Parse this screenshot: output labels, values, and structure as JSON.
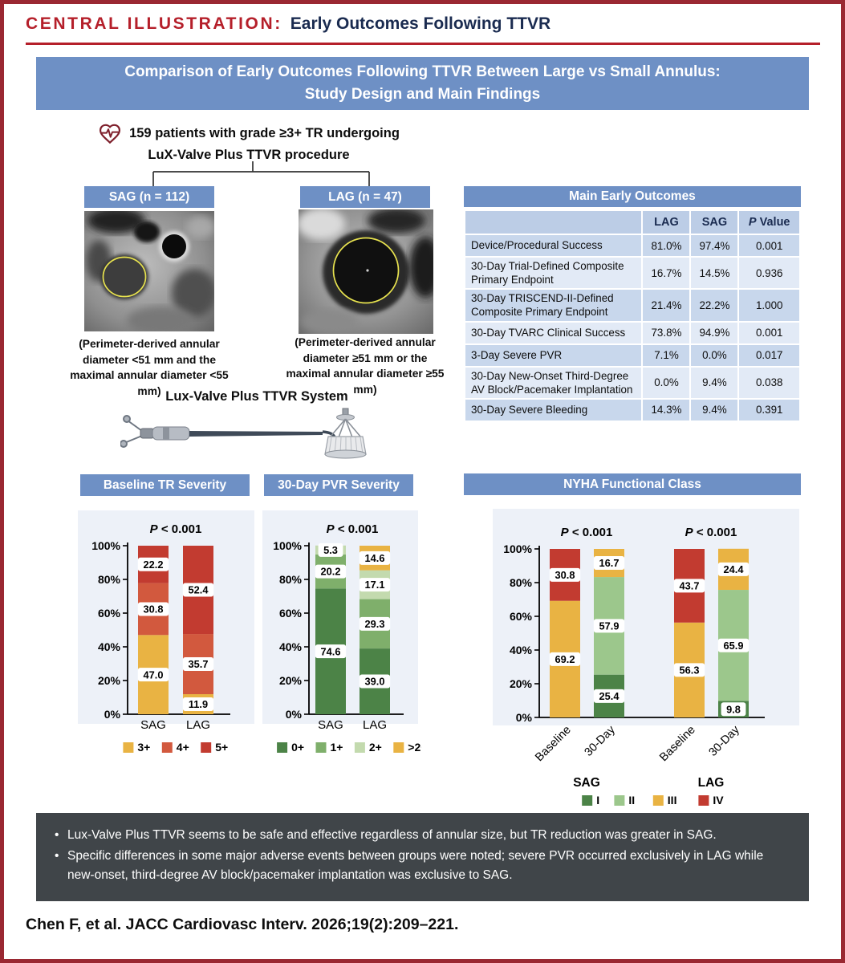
{
  "page": {
    "header_label": "CENTRAL ILLUSTRATION:",
    "header_title": "Early Outcomes Following TTVR",
    "banner_line1": "Comparison of Early Outcomes Following TTVR Between Large vs Small Annulus:",
    "banner_line2": "Study Design and Main Findings",
    "citation": "Chen F, et al. JACC Cardiovasc Interv. 2026;19(2):209–221."
  },
  "study": {
    "population_line1": "159 patients with grade ≥3+ TR undergoing",
    "population_line2": "LuX-Valve Plus TTVR procedure",
    "sag_label": "SAG (n = 112)",
    "lag_label": "LAG (n = 47)",
    "sag_caption": "(Perimeter-derived annular diameter <51 mm and the maximal annular diameter <55 mm)",
    "lag_caption": "(Perimeter-derived annular diameter ≥51 mm or the maximal annular diameter ≥55 mm)",
    "device_title": "Lux-Valve Plus TTVR System"
  },
  "outcomes_table": {
    "title": "Main Early Outcomes",
    "columns": [
      "",
      "LAG",
      "SAG",
      "P Value"
    ],
    "rows": [
      {
        "label": "Device/Procedural Success",
        "lag": "81.0%",
        "sag": "97.4%",
        "p": "0.001"
      },
      {
        "label": "30-Day Trial-Defined Composite Primary Endpoint",
        "lag": "16.7%",
        "sag": "14.5%",
        "p": "0.936"
      },
      {
        "label": "30-Day TRISCEND-II-Defined Composite Primary Endpoint",
        "lag": "21.4%",
        "sag": "22.2%",
        "p": "1.000"
      },
      {
        "label": "30-Day TVARC Clinical Success",
        "lag": "73.8%",
        "sag": "94.9%",
        "p": "0.001"
      },
      {
        "label": "3-Day Severe PVR",
        "lag": "7.1%",
        "sag": "0.0%",
        "p": "0.017"
      },
      {
        "label": "30-Day New-Onset Third-Degree AV Block/Pacemaker Implantation",
        "lag": "0.0%",
        "sag": "9.4%",
        "p": "0.038"
      },
      {
        "label": "30-Day Severe Bleeding",
        "lag": "14.3%",
        "sag": "9.4%",
        "p": "0.391"
      }
    ]
  },
  "chart_data": [
    {
      "id": "tr-severity",
      "type": "bar",
      "title": "Baseline TR Severity",
      "p_value": "P < 0.001",
      "categories": [
        "SAG",
        "LAG"
      ],
      "series": [
        {
          "name": "3+",
          "color": "#E9B343",
          "values": [
            47.0,
            11.9
          ]
        },
        {
          "name": "4+",
          "color": "#D2593E",
          "values": [
            30.8,
            35.7
          ]
        },
        {
          "name": "5+",
          "color": "#C23B30",
          "values": [
            22.2,
            52.4
          ]
        }
      ],
      "ylabel": "",
      "ylim": [
        0,
        100
      ],
      "yticks": [
        "0%",
        "20%",
        "40%",
        "60%",
        "80%",
        "100%"
      ],
      "legend_position": "bottom"
    },
    {
      "id": "pvr-severity",
      "type": "bar",
      "title": "30-Day PVR Severity",
      "p_value": "P < 0.001",
      "categories": [
        "SAG",
        "LAG"
      ],
      "series": [
        {
          "name": "0+",
          "color": "#4C8347",
          "values": [
            74.6,
            39.0
          ]
        },
        {
          "name": "1+",
          "color": "#7FAF6B",
          "values": [
            20.2,
            29.3
          ]
        },
        {
          "name": "2+",
          "color": "#C3DAAE",
          "values": [
            5.3,
            17.1
          ]
        },
        {
          "name": ">2+",
          "color": "#E9B343",
          "values": [
            null,
            14.6
          ]
        }
      ],
      "ylabel": "",
      "ylim": [
        0,
        100
      ],
      "yticks": [
        "0%",
        "20%",
        "40%",
        "60%",
        "80%",
        "100%"
      ],
      "legend_position": "bottom"
    },
    {
      "id": "nyha",
      "type": "bar",
      "title": "NYHA Functional Class",
      "p_values": [
        "P < 0.001",
        "P < 0.001"
      ],
      "groups": [
        {
          "label": "SAG",
          "categories": [
            "Baseline",
            "30-Day"
          ]
        },
        {
          "label": "LAG",
          "categories": [
            "Baseline",
            "30-Day"
          ]
        }
      ],
      "series": [
        {
          "name": "I",
          "color": "#4C8347",
          "values": [
            null,
            25.4,
            null,
            9.8
          ]
        },
        {
          "name": "II",
          "color": "#9CC78C",
          "values": [
            null,
            57.9,
            null,
            65.9
          ]
        },
        {
          "name": "III",
          "color": "#E9B343",
          "values": [
            69.2,
            16.7,
            56.3,
            24.4
          ]
        },
        {
          "name": "IV",
          "color": "#C23B30",
          "values": [
            30.8,
            null,
            43.7,
            null
          ]
        }
      ],
      "ylabel": "",
      "ylim": [
        0,
        100
      ],
      "yticks": [
        "0%",
        "20%",
        "40%",
        "60%",
        "80%",
        "100%"
      ],
      "legend_position": "bottom"
    }
  ],
  "takeaways": {
    "bullets": [
      "Lux-Valve Plus TTVR seems to be safe and effective regardless of annular size, but TR reduction was greater in SAG.",
      "Specific differences in some major adverse events between groups were noted; severe PVR occurred exclusively in LAG while new-onset, third-degree AV block/pacemaker implantation was exclusive to SAG."
    ]
  },
  "colors": {
    "border_red": "#9A2832",
    "accent_red": "#B51F2A",
    "navy": "#1A2B50",
    "banner_blue": "#6E90C5",
    "row_dark": "#C8D7EC",
    "row_light": "#E2EAF6",
    "chart_panel": "#EDF1F8",
    "dark_box": "#404549",
    "annulus_outline_yellow": "#E8E34F"
  }
}
